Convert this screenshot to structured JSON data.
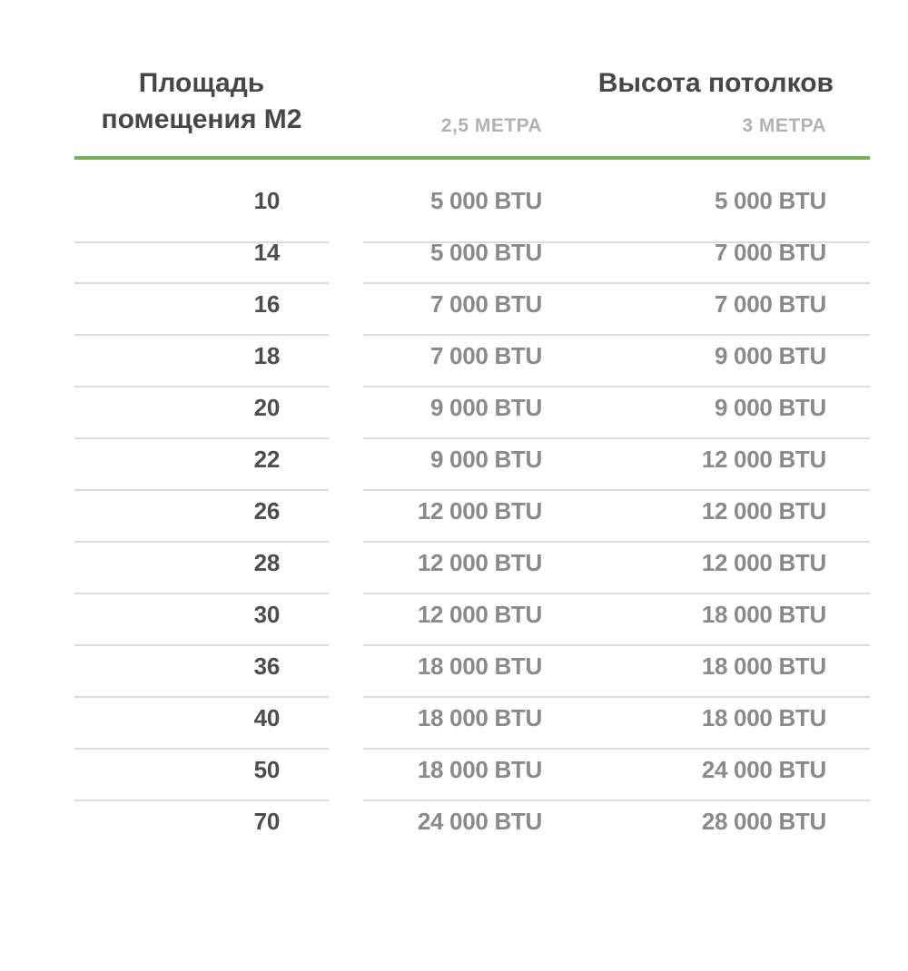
{
  "colors": {
    "accent_green": "#70b346",
    "divider_gray": "#dcdcdc"
  },
  "header": {
    "area_title_line1": "Площадь",
    "area_title_line2": "помещения М2",
    "height_title": "Высота потолков",
    "sub_2_5m": "2,5 МЕТРА",
    "sub_3m": "3 МЕТРА"
  },
  "chart_data": {
    "type": "table",
    "title": "",
    "column_groups": [
      {
        "label": "Площадь помещения М2",
        "span": 1
      },
      {
        "label": "Высота потолков",
        "span": 2
      }
    ],
    "columns": [
      "Площадь помещения М2",
      "2,5 МЕТРА",
      "3 МЕТРА"
    ],
    "rows": [
      [
        "10",
        "5 000 BTU",
        "5 000 BTU"
      ],
      [
        "14",
        "5 000 BTU",
        "7 000 BTU"
      ],
      [
        "16",
        "7 000 BTU",
        "7 000 BTU"
      ],
      [
        "18",
        "7 000 BTU",
        "9 000 BTU"
      ],
      [
        "20",
        "9 000 BTU",
        "9 000 BTU"
      ],
      [
        "22",
        "9 000 BTU",
        "12 000 BTU"
      ],
      [
        "26",
        "12 000 BTU",
        "12 000 BTU"
      ],
      [
        "28",
        "12 000 BTU",
        "12 000 BTU"
      ],
      [
        "30",
        "12 000 BTU",
        "18 000 BTU"
      ],
      [
        "36",
        "18 000 BTU",
        "18 000 BTU"
      ],
      [
        "40",
        "18 000 BTU",
        "18 000 BTU"
      ],
      [
        "50",
        "18 000 BTU",
        "24 000 BTU"
      ],
      [
        "70",
        "24 000 BTU",
        "28 000 BTU"
      ]
    ]
  }
}
